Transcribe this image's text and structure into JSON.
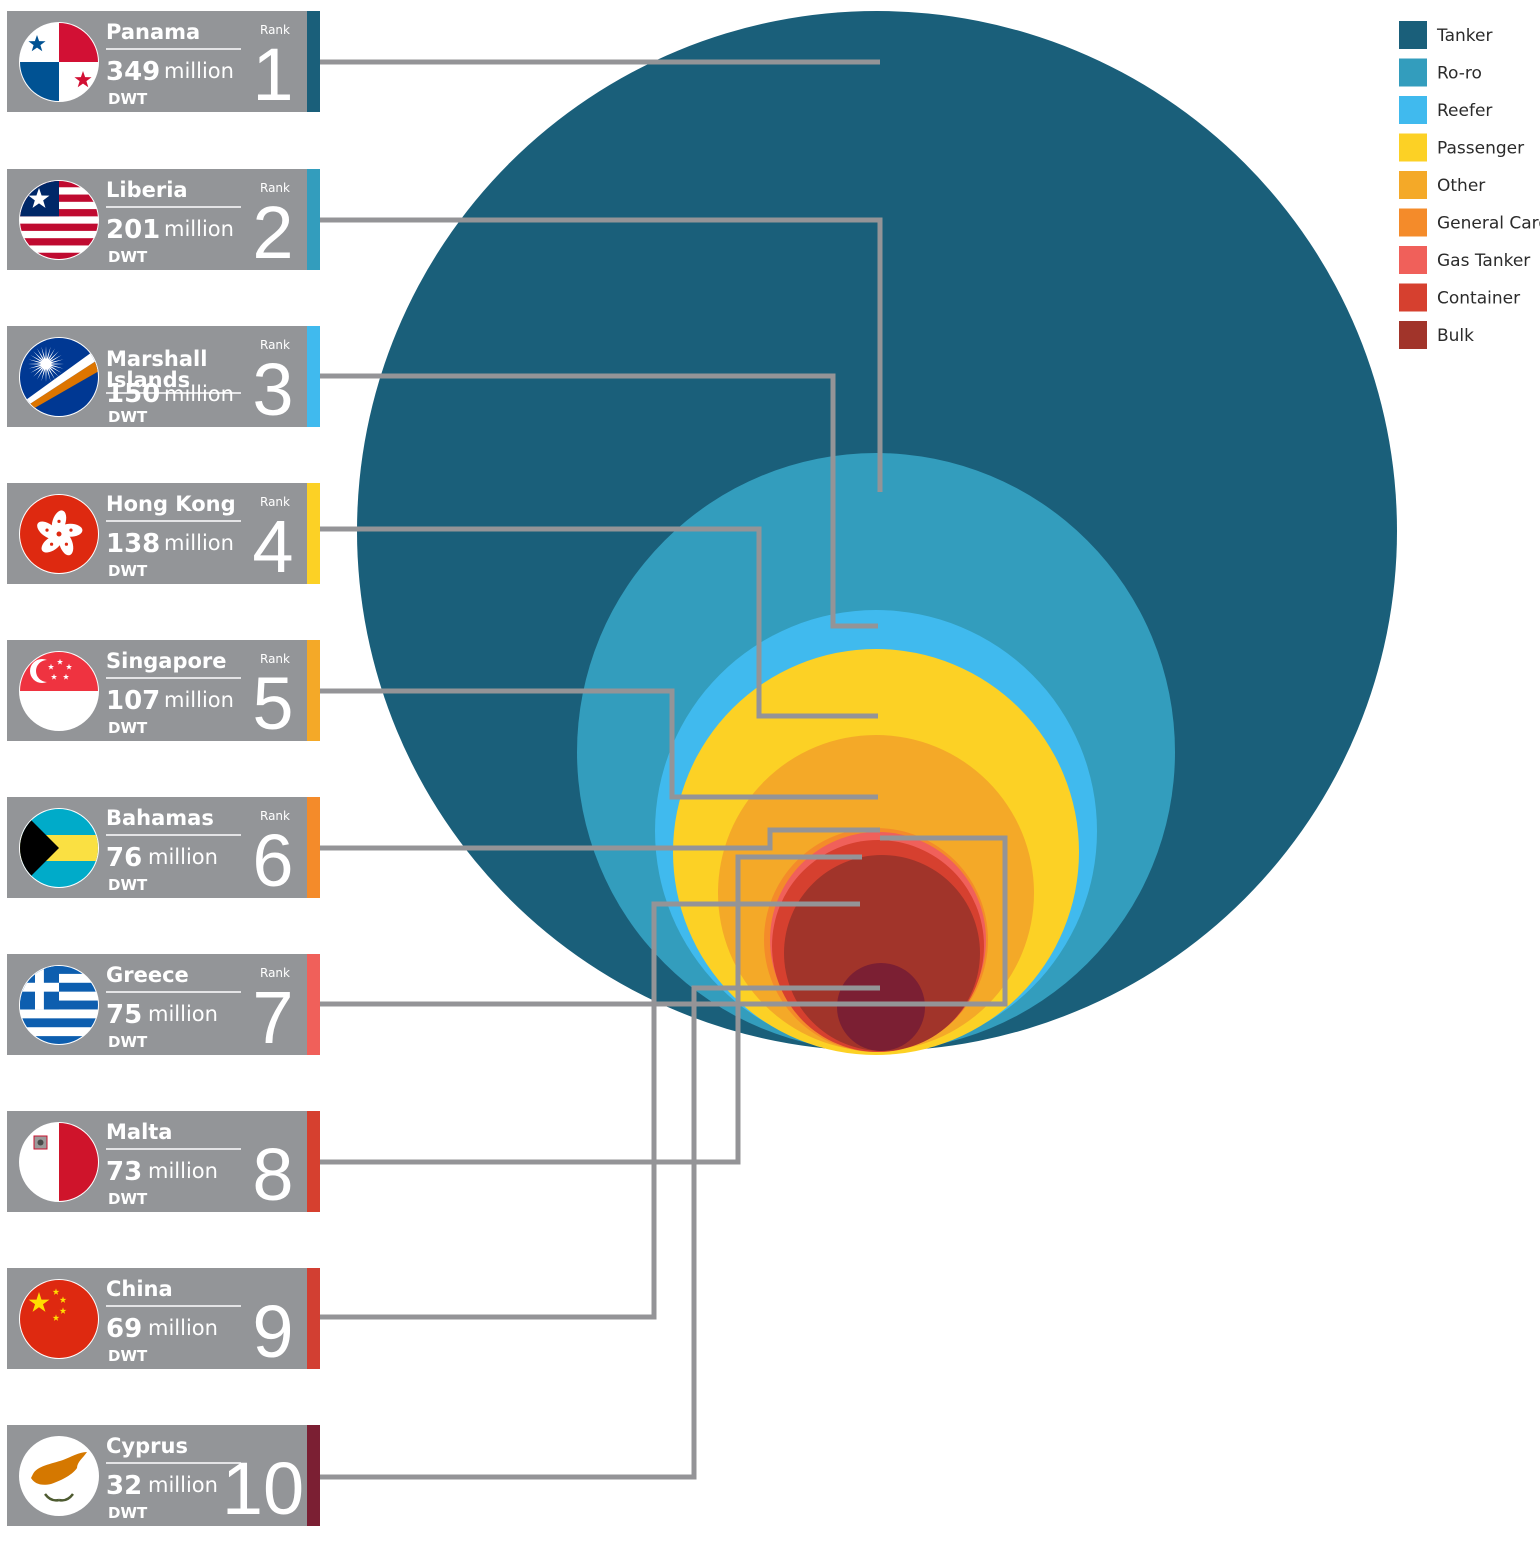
{
  "chart_data": {
    "type": "nested-circle",
    "unit_label": "million",
    "unit_sublabel": "DWT",
    "rank_label": "Rank",
    "ranking": [
      {
        "rank": "1",
        "country": "Panama",
        "value": 349,
        "flag": "panama-flag",
        "bar_color": "#1a5f7a"
      },
      {
        "rank": "2",
        "country": "Liberia",
        "value": 201,
        "flag": "liberia-flag",
        "bar_color": "#339dbd"
      },
      {
        "rank": "3",
        "country": "Marshall Islands",
        "value": 150,
        "flag": "marshall-islands-flag",
        "bar_color": "#40baee"
      },
      {
        "rank": "4",
        "country": "Hong Kong",
        "value": 138,
        "flag": "hong-kong-flag",
        "bar_color": "#fcd125"
      },
      {
        "rank": "5",
        "country": "Singapore",
        "value": 107,
        "flag": "singapore-flag",
        "bar_color": "#f4a928"
      },
      {
        "rank": "6",
        "country": "Bahamas",
        "value": 76,
        "flag": "bahamas-flag",
        "bar_color": "#f48b2a"
      },
      {
        "rank": "7",
        "country": "Greece",
        "value": 75,
        "flag": "greece-flag",
        "bar_color": "#f0605a"
      },
      {
        "rank": "8",
        "country": "Malta",
        "value": 73,
        "flag": "malta-flag",
        "bar_color": "#d6402f"
      },
      {
        "rank": "9",
        "country": "China",
        "value": 69,
        "flag": "china-flag",
        "bar_color": "#d23f32"
      },
      {
        "rank": "10",
        "country": "Cyprus",
        "value": 32,
        "flag": "cyprus-flag",
        "bar_color": "#7b1f33"
      }
    ],
    "legend": [
      {
        "name": "Tanker",
        "color": "#1a5f7a"
      },
      {
        "name": "Ro-ro",
        "color": "#339dbd"
      },
      {
        "name": "Reefer",
        "color": "#40baee"
      },
      {
        "name": "Passenger",
        "color": "#fcd125"
      },
      {
        "name": "Other",
        "color": "#f4a928"
      },
      {
        "name": "General Cargo",
        "color": "#f48b2a"
      },
      {
        "name": "Gas Tanker",
        "color": "#f0605a"
      },
      {
        "name": "Container",
        "color": "#d6402f"
      },
      {
        "name": "Bulk",
        "color": "#a1342a"
      }
    ],
    "circle_order": [
      "Tanker",
      "Ro-ro",
      "Reefer",
      "Passenger",
      "Other",
      "General Cargo",
      "Gas Tanker",
      "Container",
      "Bulk"
    ],
    "innermost_color": "#7b1f33"
  },
  "colors": {
    "card_bg": "#939598",
    "connector": "#949497"
  }
}
